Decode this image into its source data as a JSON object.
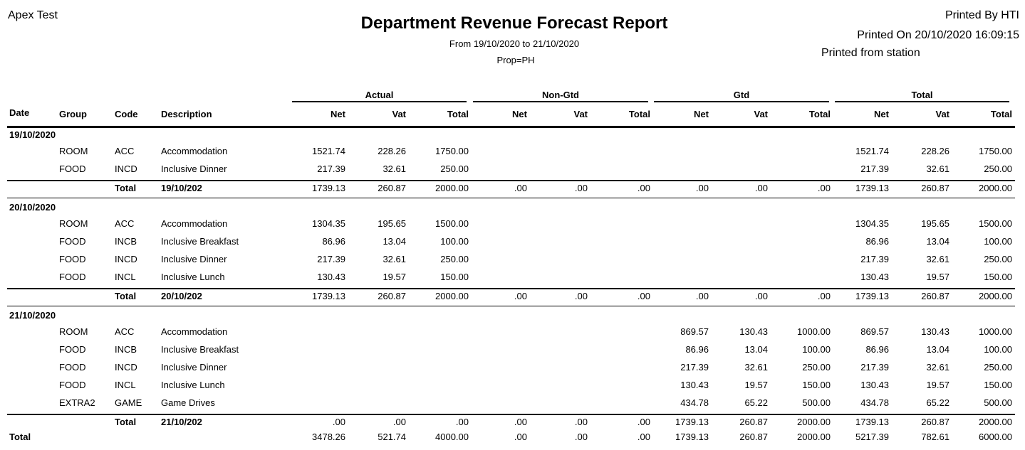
{
  "header": {
    "company": "Apex Test",
    "title": "Department Revenue Forecast Report",
    "range": "From 19/10/2020 to 21/10/2020",
    "prop": "Prop=PH",
    "printed_by": "Printed By HTI",
    "printed_on": "Printed On 20/10/2020 16:09:15",
    "printed_from": "Printed from station"
  },
  "columns": {
    "fixed": [
      "Date",
      "Group",
      "Code",
      "Description"
    ],
    "groups": [
      "Actual",
      "Non-Gtd",
      "Gtd",
      "Total"
    ],
    "sub": [
      "Net",
      "Vat",
      "Total"
    ]
  },
  "sections": [
    {
      "date": "19/10/2020",
      "rows": [
        [
          "ROOM",
          "ACC",
          "Accommodation",
          "1521.74",
          "228.26",
          "1750.00",
          null,
          null,
          null,
          null,
          null,
          null,
          "1521.74",
          "228.26",
          "1750.00"
        ],
        [
          "FOOD",
          "INCD",
          "Inclusive Dinner",
          "217.39",
          "32.61",
          "250.00",
          null,
          null,
          null,
          null,
          null,
          null,
          "217.39",
          "32.61",
          "250.00"
        ]
      ],
      "total": {
        "label": "Total",
        "date": "19/10/202",
        "values": [
          "1739.13",
          "260.87",
          "2000.00",
          ".00",
          ".00",
          ".00",
          ".00",
          ".00",
          ".00",
          "1739.13",
          "260.87",
          "2000.00"
        ]
      }
    },
    {
      "date": "20/10/2020",
      "rows": [
        [
          "ROOM",
          "ACC",
          "Accommodation",
          "1304.35",
          "195.65",
          "1500.00",
          null,
          null,
          null,
          null,
          null,
          null,
          "1304.35",
          "195.65",
          "1500.00"
        ],
        [
          "FOOD",
          "INCB",
          "Inclusive Breakfast",
          "86.96",
          "13.04",
          "100.00",
          null,
          null,
          null,
          null,
          null,
          null,
          "86.96",
          "13.04",
          "100.00"
        ],
        [
          "FOOD",
          "INCD",
          "Inclusive Dinner",
          "217.39",
          "32.61",
          "250.00",
          null,
          null,
          null,
          null,
          null,
          null,
          "217.39",
          "32.61",
          "250.00"
        ],
        [
          "FOOD",
          "INCL",
          "Inclusive Lunch",
          "130.43",
          "19.57",
          "150.00",
          null,
          null,
          null,
          null,
          null,
          null,
          "130.43",
          "19.57",
          "150.00"
        ]
      ],
      "total": {
        "label": "Total",
        "date": "20/10/202",
        "values": [
          "1739.13",
          "260.87",
          "2000.00",
          ".00",
          ".00",
          ".00",
          ".00",
          ".00",
          ".00",
          "1739.13",
          "260.87",
          "2000.00"
        ]
      }
    },
    {
      "date": "21/10/2020",
      "rows": [
        [
          "ROOM",
          "ACC",
          "Accommodation",
          null,
          null,
          null,
          null,
          null,
          null,
          "869.57",
          "130.43",
          "1000.00",
          "869.57",
          "130.43",
          "1000.00"
        ],
        [
          "FOOD",
          "INCB",
          "Inclusive Breakfast",
          null,
          null,
          null,
          null,
          null,
          null,
          "86.96",
          "13.04",
          "100.00",
          "86.96",
          "13.04",
          "100.00"
        ],
        [
          "FOOD",
          "INCD",
          "Inclusive Dinner",
          null,
          null,
          null,
          null,
          null,
          null,
          "217.39",
          "32.61",
          "250.00",
          "217.39",
          "32.61",
          "250.00"
        ],
        [
          "FOOD",
          "INCL",
          "Inclusive Lunch",
          null,
          null,
          null,
          null,
          null,
          null,
          "130.43",
          "19.57",
          "150.00",
          "130.43",
          "19.57",
          "150.00"
        ],
        [
          "EXTRA2",
          "GAME",
          "Game Drives",
          null,
          null,
          null,
          null,
          null,
          null,
          "434.78",
          "65.22",
          "500.00",
          "434.78",
          "65.22",
          "500.00"
        ]
      ],
      "total": {
        "label": "Total",
        "date": "21/10/202",
        "values": [
          ".00",
          ".00",
          ".00",
          ".00",
          ".00",
          ".00",
          "1739.13",
          "260.87",
          "2000.00",
          "1739.13",
          "260.87",
          "2000.00"
        ]
      }
    }
  ],
  "grand_total": {
    "label": "Total",
    "values": [
      "3478.26",
      "521.74",
      "4000.00",
      ".00",
      ".00",
      ".00",
      "1739.13",
      "260.87",
      "2000.00",
      "5217.39",
      "782.61",
      "6000.00"
    ]
  }
}
